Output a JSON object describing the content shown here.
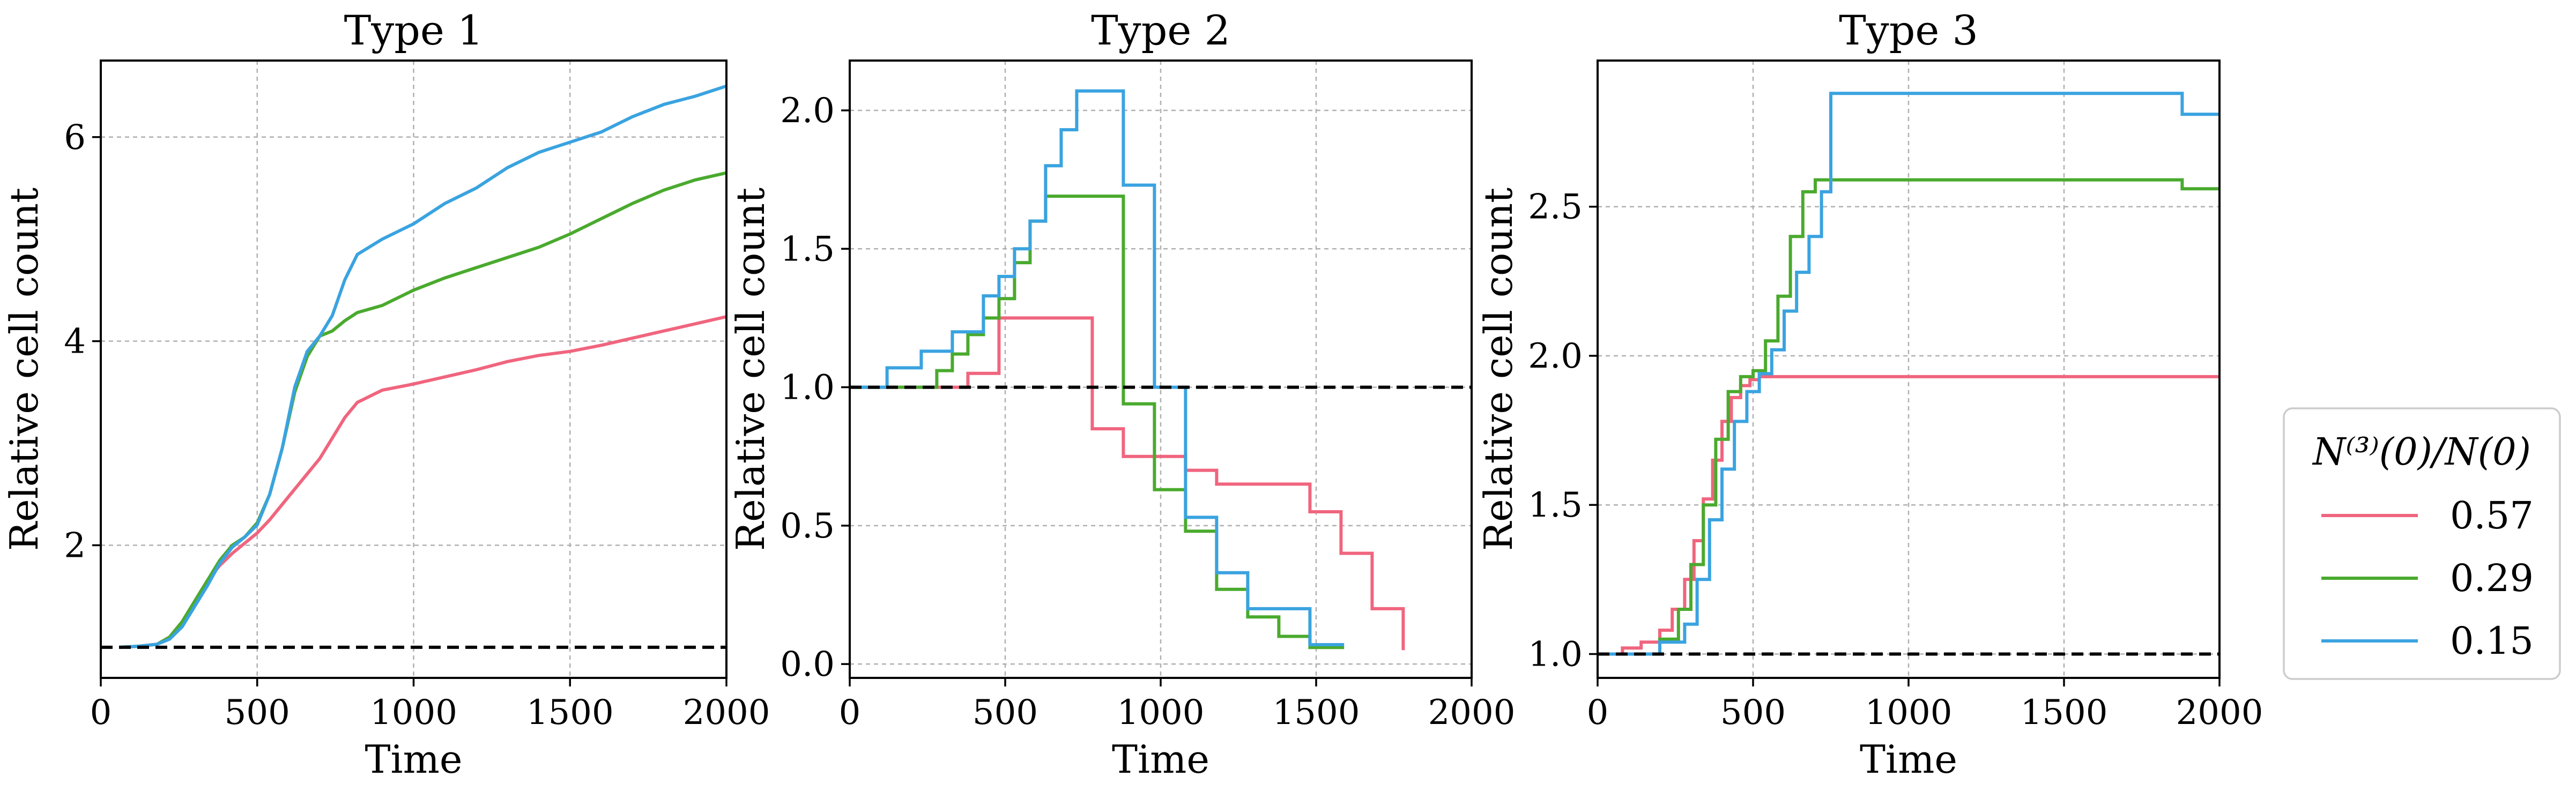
{
  "chart_data": [
    {
      "type": "line",
      "title": "Type 1",
      "xlabel": "Time",
      "ylabel": "Relative cell count",
      "xlim": [
        0,
        2000
      ],
      "ylim": [
        0.7,
        6.75
      ],
      "xticks": [
        0,
        500,
        1000,
        1500,
        2000
      ],
      "xtick_labels": [
        "0",
        "500",
        "1000",
        "1500",
        "2000"
      ],
      "yticks": [
        2,
        4,
        6
      ],
      "ytick_labels": [
        "2",
        "4",
        "6"
      ],
      "grid": true,
      "reference_line": 1.0,
      "series": [
        {
          "name": "0.57",
          "color": "#f0657e",
          "step": false,
          "x": [
            60,
            120,
            180,
            220,
            260,
            300,
            340,
            380,
            420,
            460,
            500,
            540,
            580,
            620,
            660,
            700,
            740,
            780,
            820,
            900,
            1000,
            1100,
            1200,
            1300,
            1400,
            1500,
            1600,
            1700,
            1800,
            1900,
            2000
          ],
          "y": [
            1.0,
            1.01,
            1.03,
            1.1,
            1.25,
            1.45,
            1.65,
            1.8,
            1.92,
            2.02,
            2.12,
            2.25,
            2.4,
            2.55,
            2.7,
            2.85,
            3.05,
            3.25,
            3.4,
            3.52,
            3.58,
            3.65,
            3.72,
            3.8,
            3.86,
            3.9,
            3.96,
            4.03,
            4.1,
            4.17,
            4.24
          ]
        },
        {
          "name": "0.29",
          "color": "#4aaa2e",
          "step": false,
          "x": [
            60,
            120,
            180,
            220,
            260,
            300,
            340,
            380,
            420,
            460,
            500,
            540,
            580,
            620,
            660,
            700,
            740,
            780,
            820,
            900,
            1000,
            1100,
            1200,
            1300,
            1400,
            1500,
            1600,
            1700,
            1800,
            1900,
            2000
          ],
          "y": [
            1.0,
            1.01,
            1.03,
            1.1,
            1.25,
            1.45,
            1.65,
            1.85,
            2.0,
            2.08,
            2.22,
            2.5,
            2.95,
            3.5,
            3.85,
            4.05,
            4.1,
            4.2,
            4.28,
            4.35,
            4.5,
            4.62,
            4.72,
            4.82,
            4.92,
            5.05,
            5.2,
            5.35,
            5.48,
            5.58,
            5.65
          ]
        },
        {
          "name": "0.15",
          "color": "#3aa3e0",
          "step": false,
          "x": [
            60,
            120,
            180,
            220,
            260,
            300,
            340,
            380,
            420,
            460,
            500,
            540,
            580,
            620,
            660,
            700,
            740,
            780,
            820,
            900,
            1000,
            1100,
            1200,
            1300,
            1400,
            1500,
            1600,
            1700,
            1800,
            1900,
            2000
          ],
          "y": [
            1.0,
            1.01,
            1.03,
            1.08,
            1.2,
            1.4,
            1.6,
            1.82,
            1.98,
            2.08,
            2.2,
            2.5,
            2.95,
            3.55,
            3.9,
            4.05,
            4.25,
            4.6,
            4.85,
            5.0,
            5.15,
            5.35,
            5.5,
            5.7,
            5.85,
            5.95,
            6.05,
            6.2,
            6.32,
            6.4,
            6.5
          ]
        }
      ]
    },
    {
      "type": "line",
      "title": "Type 2",
      "xlabel": "Time",
      "ylabel": "Relative cell count",
      "xlim": [
        0,
        2000
      ],
      "ylim": [
        -0.05,
        2.18
      ],
      "xticks": [
        0,
        500,
        1000,
        1500,
        2000
      ],
      "xtick_labels": [
        "0",
        "500",
        "1000",
        "1500",
        "2000"
      ],
      "yticks": [
        0.0,
        0.5,
        1.0,
        1.5,
        2.0
      ],
      "ytick_labels": [
        "0.0",
        "0.5",
        "1.0",
        "1.5",
        "2.0"
      ],
      "grid": true,
      "reference_line": 1.0,
      "series": [
        {
          "name": "0.57",
          "color": "#f0657e",
          "step": true,
          "x": [
            0,
            380,
            480,
            780,
            880,
            1080,
            1180,
            1480,
            1580,
            1680,
            1780
          ],
          "y": [
            1.0,
            1.05,
            1.25,
            0.85,
            0.75,
            0.7,
            0.65,
            0.55,
            0.4,
            0.2,
            0.05
          ]
        },
        {
          "name": "0.29",
          "color": "#4aaa2e",
          "step": true,
          "x": [
            0,
            280,
            330,
            380,
            430,
            480,
            530,
            580,
            630,
            880,
            980,
            1080,
            1180,
            1280,
            1380,
            1480,
            1590
          ],
          "y": [
            1.0,
            1.06,
            1.12,
            1.19,
            1.25,
            1.32,
            1.45,
            1.6,
            1.69,
            0.94,
            0.63,
            0.48,
            0.27,
            0.17,
            0.1,
            0.06,
            0.06
          ]
        },
        {
          "name": "0.15",
          "color": "#3aa3e0",
          "step": true,
          "x": [
            0,
            120,
            230,
            330,
            430,
            480,
            530,
            580,
            630,
            680,
            730,
            880,
            980,
            1080,
            1180,
            1280,
            1380,
            1480,
            1590
          ],
          "y": [
            1.0,
            1.07,
            1.13,
            1.2,
            1.33,
            1.4,
            1.5,
            1.6,
            1.8,
            1.93,
            2.07,
            1.73,
            1.0,
            0.53,
            0.33,
            0.2,
            0.2,
            0.07,
            0.07
          ]
        }
      ]
    },
    {
      "type": "line",
      "title": "Type 3",
      "xlabel": "Time",
      "ylabel": "Relative cell count",
      "xlim": [
        0,
        2000
      ],
      "ylim": [
        0.92,
        2.99
      ],
      "xticks": [
        0,
        500,
        1000,
        1500,
        2000
      ],
      "xtick_labels": [
        "0",
        "500",
        "1000",
        "1500",
        "2000"
      ],
      "yticks": [
        1.0,
        1.5,
        2.0,
        2.5
      ],
      "ytick_labels": [
        "1.0",
        "1.5",
        "2.0",
        "2.5"
      ],
      "grid": true,
      "reference_line": 1.0,
      "series": [
        {
          "name": "0.57",
          "color": "#f0657e",
          "step": true,
          "x": [
            0,
            80,
            140,
            200,
            240,
            280,
            310,
            340,
            370,
            400,
            430,
            460,
            490,
            520,
            550,
            2000
          ],
          "y": [
            1.0,
            1.02,
            1.04,
            1.08,
            1.15,
            1.25,
            1.38,
            1.52,
            1.65,
            1.78,
            1.86,
            1.9,
            1.92,
            1.93,
            1.93,
            1.93
          ]
        },
        {
          "name": "0.29",
          "color": "#4aaa2e",
          "step": true,
          "x": [
            0,
            200,
            260,
            300,
            340,
            380,
            420,
            460,
            500,
            540,
            580,
            620,
            660,
            700,
            1880,
            2000
          ],
          "y": [
            1.0,
            1.05,
            1.15,
            1.3,
            1.5,
            1.72,
            1.88,
            1.93,
            1.95,
            2.05,
            2.2,
            2.4,
            2.55,
            2.59,
            2.56,
            2.56
          ]
        },
        {
          "name": "0.15",
          "color": "#3aa3e0",
          "step": true,
          "x": [
            0,
            200,
            280,
            320,
            360,
            400,
            440,
            480,
            520,
            560,
            600,
            640,
            680,
            720,
            750,
            1880,
            2000
          ],
          "y": [
            1.0,
            1.04,
            1.1,
            1.25,
            1.45,
            1.62,
            1.78,
            1.88,
            1.94,
            2.02,
            2.15,
            2.28,
            2.4,
            2.55,
            2.88,
            2.81,
            2.81
          ]
        }
      ]
    }
  ],
  "legend": {
    "title": "N⁽³⁾(0)/N(0)",
    "placement": "right",
    "entries": [
      {
        "label": "0.57",
        "color": "#f0657e"
      },
      {
        "label": "0.29",
        "color": "#4aaa2e"
      },
      {
        "label": "0.15",
        "color": "#3aa3e0"
      }
    ]
  }
}
